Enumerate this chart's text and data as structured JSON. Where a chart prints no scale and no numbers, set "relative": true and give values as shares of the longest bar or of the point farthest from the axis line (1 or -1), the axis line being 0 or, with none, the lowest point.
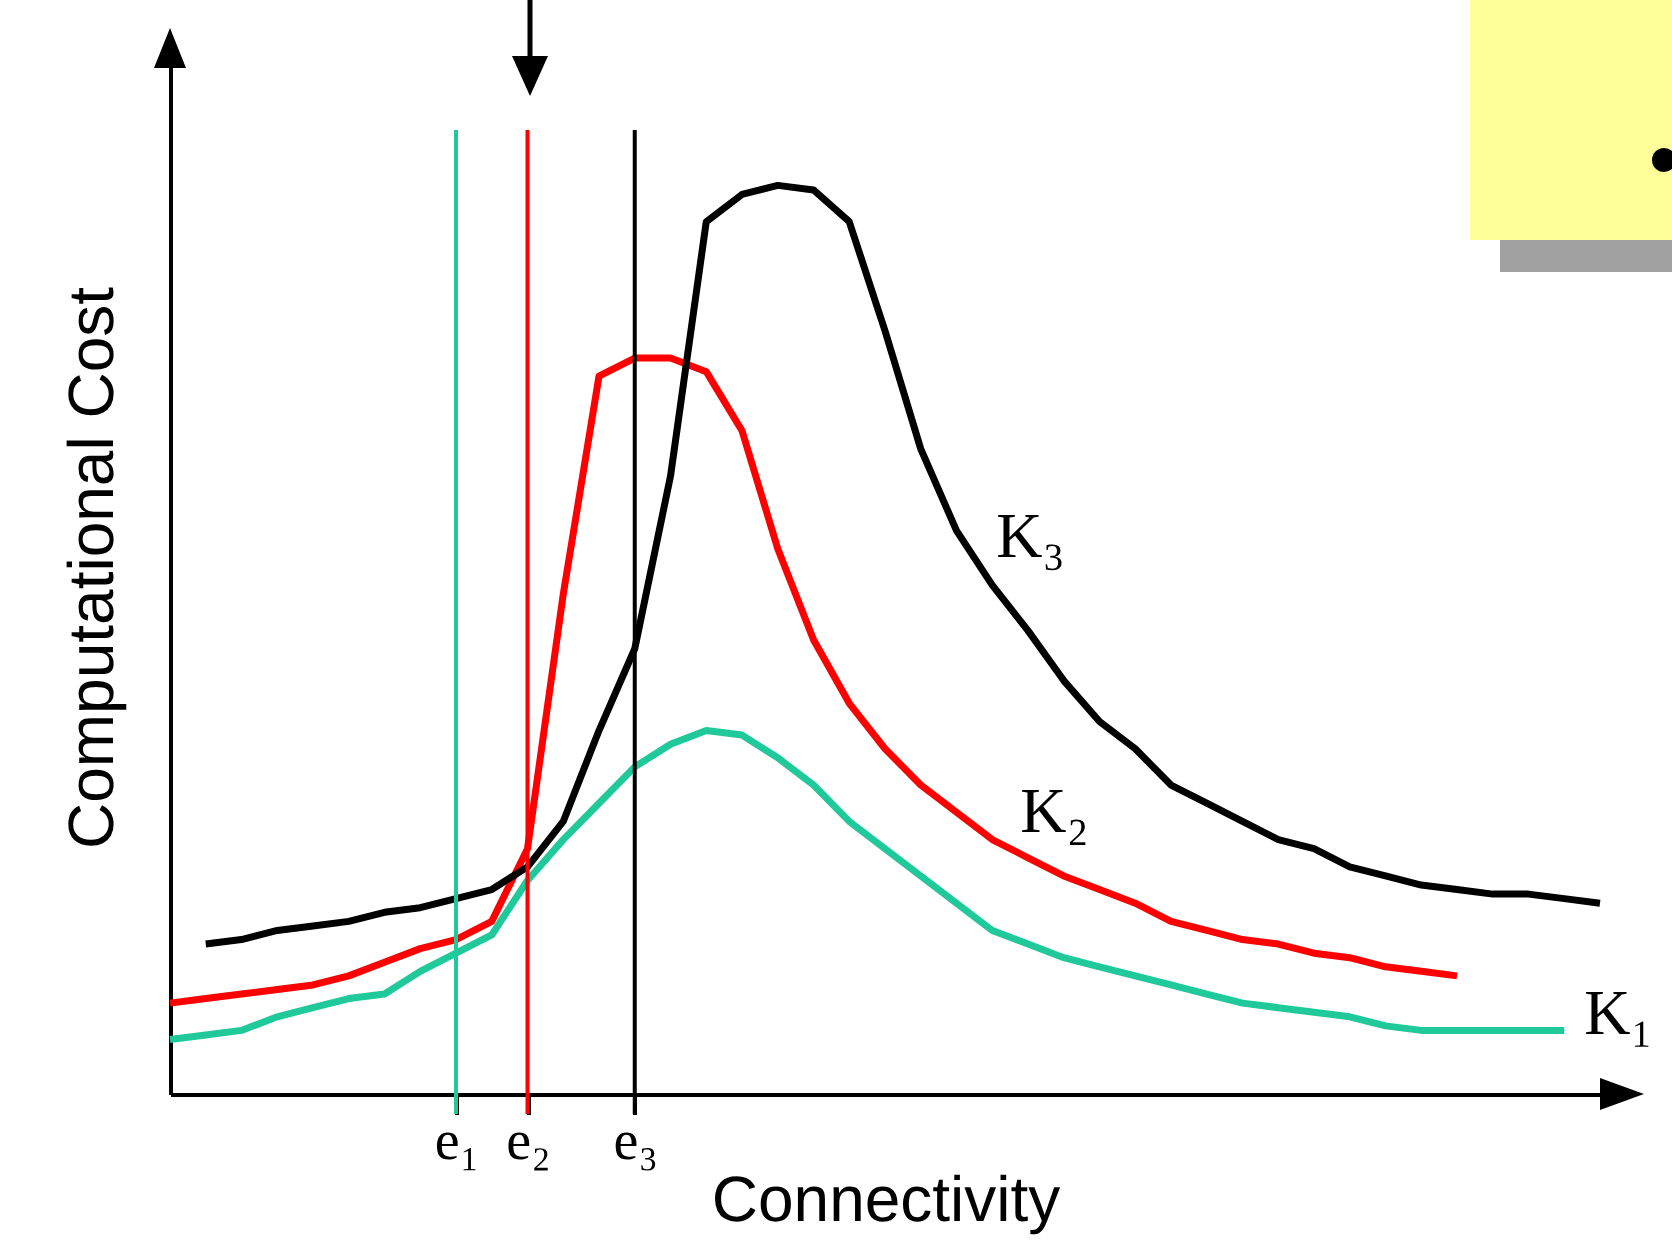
{
  "chart_data": {
    "type": "line",
    "relative": true,
    "xlabel": "Connectivity",
    "ylabel": "Computational Cost",
    "line_style": "solid",
    "categories": [
      null,
      null,
      null,
      null,
      null,
      null,
      null,
      null,
      "e₁",
      null,
      "e₂",
      null,
      null,
      "e₃",
      null,
      null,
      null,
      null,
      null,
      null,
      null,
      null,
      null,
      null,
      null,
      null,
      null,
      null,
      null,
      null,
      null,
      null,
      null,
      null,
      null,
      null,
      null,
      null,
      null,
      null,
      null
    ],
    "ref_lines": [
      {
        "axis": "x",
        "value": "e₁",
        "color": "#1fc99a"
      },
      {
        "axis": "x",
        "value": "e₂",
        "color": "#ff0000"
      },
      {
        "axis": "x",
        "value": "e₃",
        "color": "#000000"
      }
    ],
    "series": [
      {
        "name": "K₁",
        "color": "#1fc99a",
        "values": [
          0.06,
          0.065,
          0.07,
          0.085,
          0.095,
          0.105,
          0.11,
          0.135,
          0.155,
          0.175,
          0.235,
          0.28,
          0.32,
          0.36,
          0.385,
          0.4,
          0.395,
          0.37,
          0.34,
          0.3,
          0.27,
          0.24,
          0.21,
          0.18,
          0.165,
          0.15,
          0.14,
          0.13,
          0.12,
          0.11,
          0.1,
          0.095,
          0.09,
          0.085,
          0.075,
          0.07,
          0.07,
          0.07,
          0.07,
          0.07,
          null
        ]
      },
      {
        "name": "K₂",
        "color": "#ff0000",
        "values": [
          0.1,
          0.105,
          0.11,
          0.115,
          0.12,
          0.13,
          0.145,
          0.16,
          0.17,
          0.19,
          0.27,
          0.55,
          0.79,
          0.81,
          0.81,
          0.795,
          0.73,
          0.6,
          0.5,
          0.43,
          0.38,
          0.34,
          0.31,
          0.28,
          0.26,
          0.24,
          0.225,
          0.21,
          0.19,
          0.18,
          0.17,
          0.165,
          0.155,
          0.15,
          0.14,
          0.135,
          0.13,
          null,
          null,
          null,
          null
        ]
      },
      {
        "name": "K₃",
        "color": "#000000",
        "values": [
          null,
          0.165,
          0.17,
          0.18,
          0.185,
          0.19,
          0.2,
          0.205,
          0.215,
          0.225,
          0.25,
          0.3,
          0.4,
          0.49,
          0.68,
          0.96,
          0.99,
          1,
          0.995,
          0.96,
          0.84,
          0.71,
          0.62,
          0.56,
          0.51,
          0.455,
          0.41,
          0.38,
          0.34,
          0.32,
          0.3,
          0.28,
          0.27,
          0.25,
          0.24,
          0.23,
          0.225,
          0.22,
          0.22,
          0.215,
          0.21
        ]
      }
    ]
  }
}
